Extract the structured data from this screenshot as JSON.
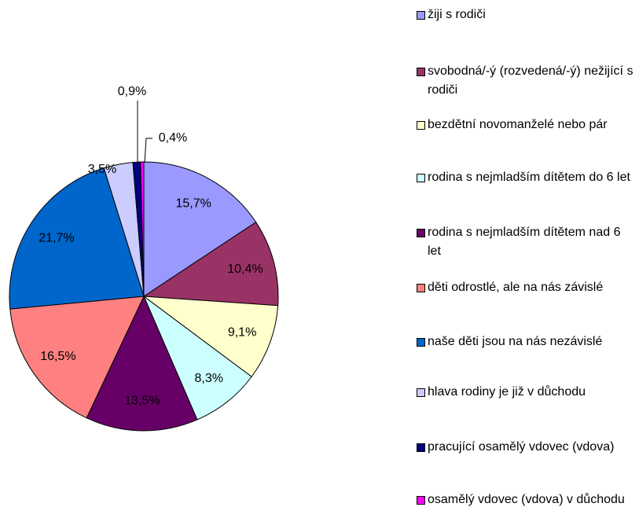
{
  "chart_data": {
    "type": "pie",
    "categories": [
      "žiji s rodiči",
      "svobodná/-ý (rozvedená/-ý) nežijící s rodiči",
      "bezdětní novomanželé nebo pár",
      "rodina s nejmladším dítětem do 6 let",
      "rodina s nejmladším dítětem nad 6 let",
      "děti odrostlé, ale na nás závislé",
      "naše děti jsou na nás nezávislé",
      "hlava rodiny je již v důchodu",
      "pracující osamělý vdovec (vdova)",
      "osamělý vdovec (vdova) v důchodu"
    ],
    "values": [
      15.7,
      10.4,
      9.1,
      8.3,
      13.5,
      16.5,
      21.7,
      3.5,
      0.9,
      0.4
    ],
    "value_labels": [
      "15,7%",
      "10,4%",
      "9,1%",
      "8,3%",
      "13,5%",
      "16,5%",
      "21,7%",
      "3,5%",
      "0,9%",
      "0,4%"
    ],
    "colors": [
      "#9999ff",
      "#993366",
      "#ffffcc",
      "#ccffff",
      "#660066",
      "#ff8080",
      "#0066cc",
      "#ccccff",
      "#000080",
      "#ff00ff"
    ],
    "legend": "right"
  }
}
